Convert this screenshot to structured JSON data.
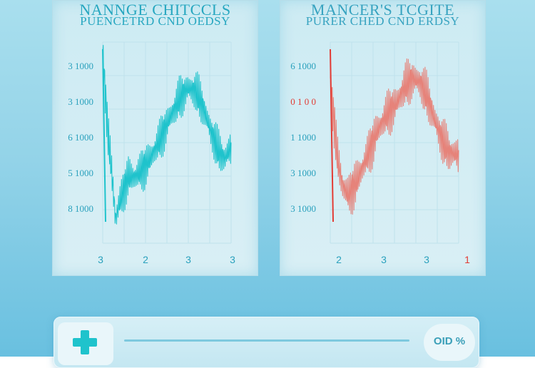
{
  "colors": {
    "left_accent": "#1fc3cc",
    "left_text": "#27a7c0",
    "right_accent": "#e23b34",
    "right_line": "#e6837a",
    "right_text": "#37a3c0",
    "tick_text": "#2aa1bd"
  },
  "bottom_bar": {
    "plus_icon": "plus-icon",
    "percent_label": "OID %"
  },
  "chart_data": [
    {
      "type": "line",
      "title": "NANNGE CHITCCLS",
      "subtitle": "PUENCETRD CND OEDSY",
      "xlabel": "",
      "ylabel": "",
      "x_ticks": [
        "3",
        "2",
        "3",
        "3"
      ],
      "y_ticks": [
        "3 1000",
        "3 1000",
        "6 1000",
        "5 1000",
        "8 1000"
      ],
      "grid": true,
      "legend": "none",
      "series": [
        {
          "color": "#1fc3cc",
          "x": [
            0,
            0.04,
            0.08,
            0.1,
            0.13,
            0.17,
            0.2,
            0.25,
            0.3,
            0.37,
            0.45,
            0.52,
            0.6,
            0.66,
            0.72,
            0.78,
            0.84,
            0.9,
            0.95,
            1.0
          ],
          "y": [
            0.95,
            0.55,
            0.28,
            0.12,
            0.2,
            0.28,
            0.33,
            0.33,
            0.36,
            0.42,
            0.52,
            0.62,
            0.72,
            0.77,
            0.76,
            0.68,
            0.56,
            0.46,
            0.42,
            0.48
          ],
          "amplitude": 0.12
        }
      ]
    },
    {
      "type": "line",
      "title": "MANCER'S TCGITE",
      "subtitle": "PURER CHED CND ERDSY",
      "xlabel": "",
      "ylabel": "",
      "x_ticks": [
        "2",
        "3",
        "3",
        "1"
      ],
      "y_ticks": [
        "6 1000",
        "0 1 0 0",
        "1 1000",
        "3 1000",
        "3 1000"
      ],
      "grid": true,
      "legend": "none",
      "series": [
        {
          "color": "#e6837a",
          "x": [
            0,
            0.03,
            0.06,
            0.1,
            0.14,
            0.2,
            0.28,
            0.36,
            0.44,
            0.52,
            0.58,
            0.64,
            0.7,
            0.76,
            0.82,
            0.88,
            0.93,
            1.0
          ],
          "y": [
            0.82,
            0.6,
            0.4,
            0.28,
            0.24,
            0.3,
            0.42,
            0.55,
            0.64,
            0.7,
            0.78,
            0.82,
            0.8,
            0.72,
            0.6,
            0.5,
            0.45,
            0.44
          ],
          "amplitude": 0.13
        }
      ]
    }
  ]
}
